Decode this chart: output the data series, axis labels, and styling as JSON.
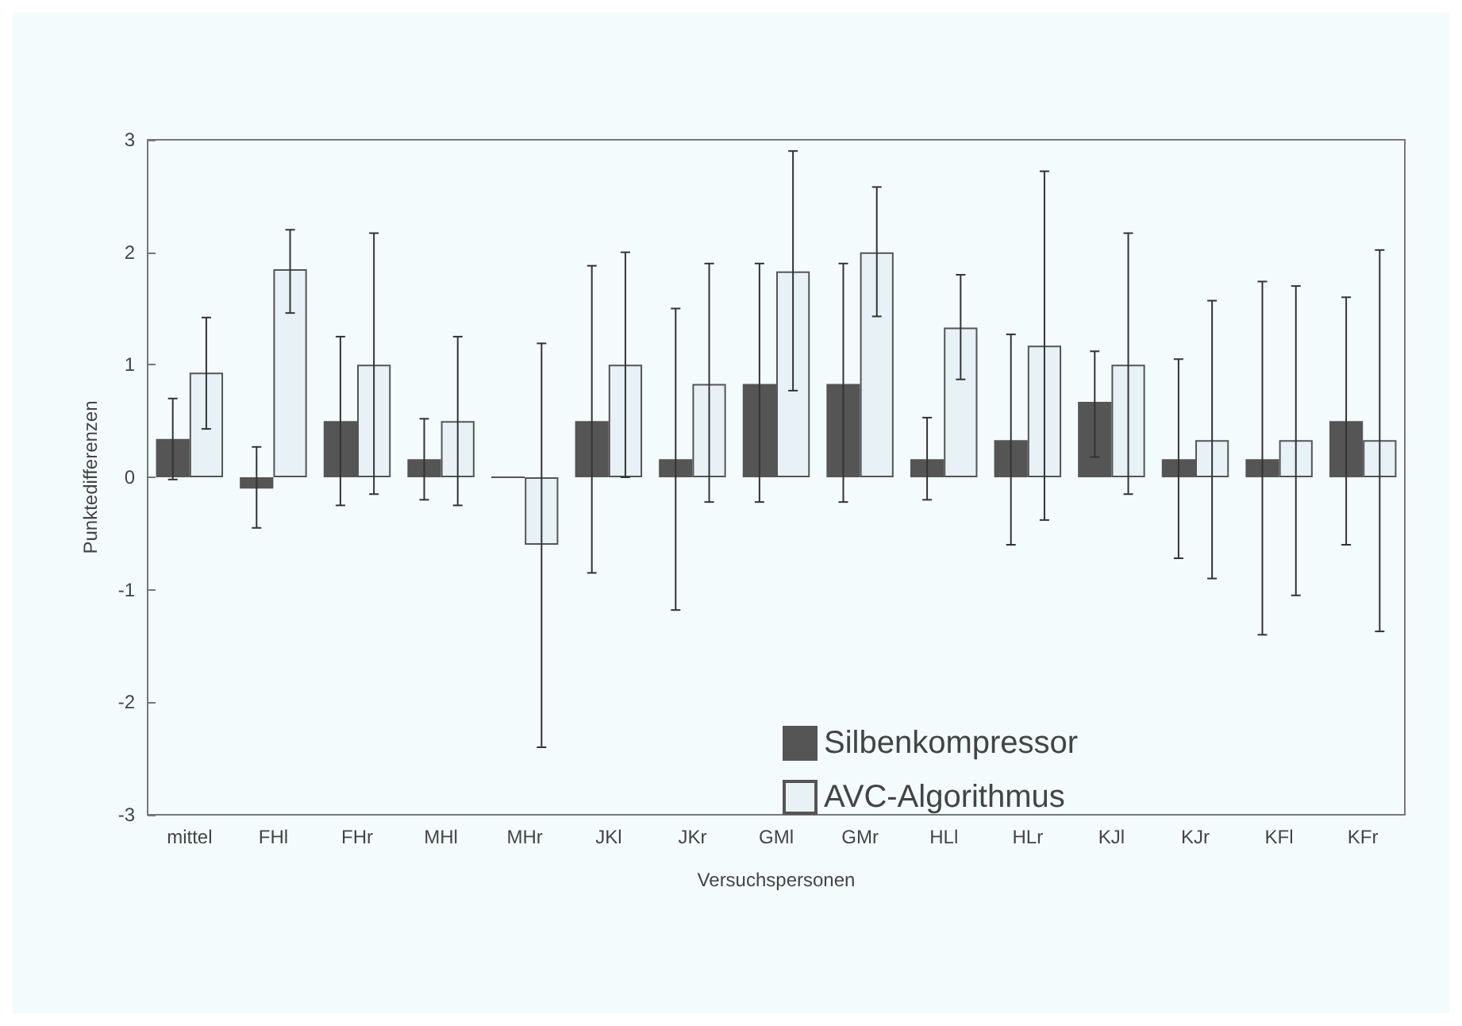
{
  "chart_data": {
    "type": "bar",
    "xlabel": "Versuchspersonen",
    "ylabel": "Punktedifferenzen",
    "categories": [
      "mittel",
      "FHl",
      "FHr",
      "MHl",
      "MHr",
      "JKl",
      "JKr",
      "GMl",
      "GMr",
      "HLl",
      "HLr",
      "KJl",
      "KJr",
      "KFl",
      "KFr"
    ],
    "series": [
      {
        "name": "Silbenkompressor",
        "color": "#555555",
        "values": [
          0.34,
          -0.1,
          0.5,
          0.16,
          0,
          0.5,
          0.16,
          0.83,
          0.83,
          0.16,
          0.33,
          0.67,
          0.16,
          0.16,
          0.5
        ],
        "errors": [
          0.36,
          [
            -0.45,
            0.27
          ],
          [
            -0.25,
            1.25
          ],
          [
            -0.2,
            0.52
          ],
          null,
          [
            -0.85,
            1.88
          ],
          [
            -1.18,
            1.5
          ],
          [
            -0.22,
            1.9
          ],
          [
            -0.22,
            1.9
          ],
          [
            -0.2,
            0.53
          ],
          [
            -0.6,
            1.27
          ],
          [
            0.18,
            1.12
          ],
          [
            -0.72,
            1.05
          ],
          [
            -1.4,
            1.74
          ],
          [
            -0.6,
            1.6
          ]
        ]
      },
      {
        "name": "AVC-Algorithmus",
        "color": "#e8f1f6",
        "values": [
          0.93,
          1.85,
          1.0,
          0.5,
          -0.6,
          1.0,
          0.83,
          1.83,
          2.0,
          1.33,
          1.17,
          1.0,
          0.33,
          0.33,
          0.33
        ],
        "errors": [
          [
            0.43,
            1.42
          ],
          [
            1.46,
            2.2
          ],
          [
            -0.15,
            2.17
          ],
          [
            -0.25,
            1.25
          ],
          [
            -2.4,
            1.19
          ],
          [
            0,
            2.0
          ],
          [
            -0.22,
            1.9
          ],
          [
            0.77,
            2.9
          ],
          [
            1.43,
            2.58
          ],
          [
            0.87,
            1.8
          ],
          [
            -0.38,
            2.72
          ],
          [
            -0.15,
            2.17
          ],
          [
            -0.9,
            1.57
          ],
          [
            -1.05,
            1.7
          ],
          [
            -1.37,
            2.02
          ]
        ]
      }
    ],
    "ylim": [
      -3,
      3
    ],
    "yticks": [
      -3,
      -2,
      -1,
      0,
      1,
      2,
      3
    ],
    "grid": false,
    "legend": "bottom right"
  }
}
